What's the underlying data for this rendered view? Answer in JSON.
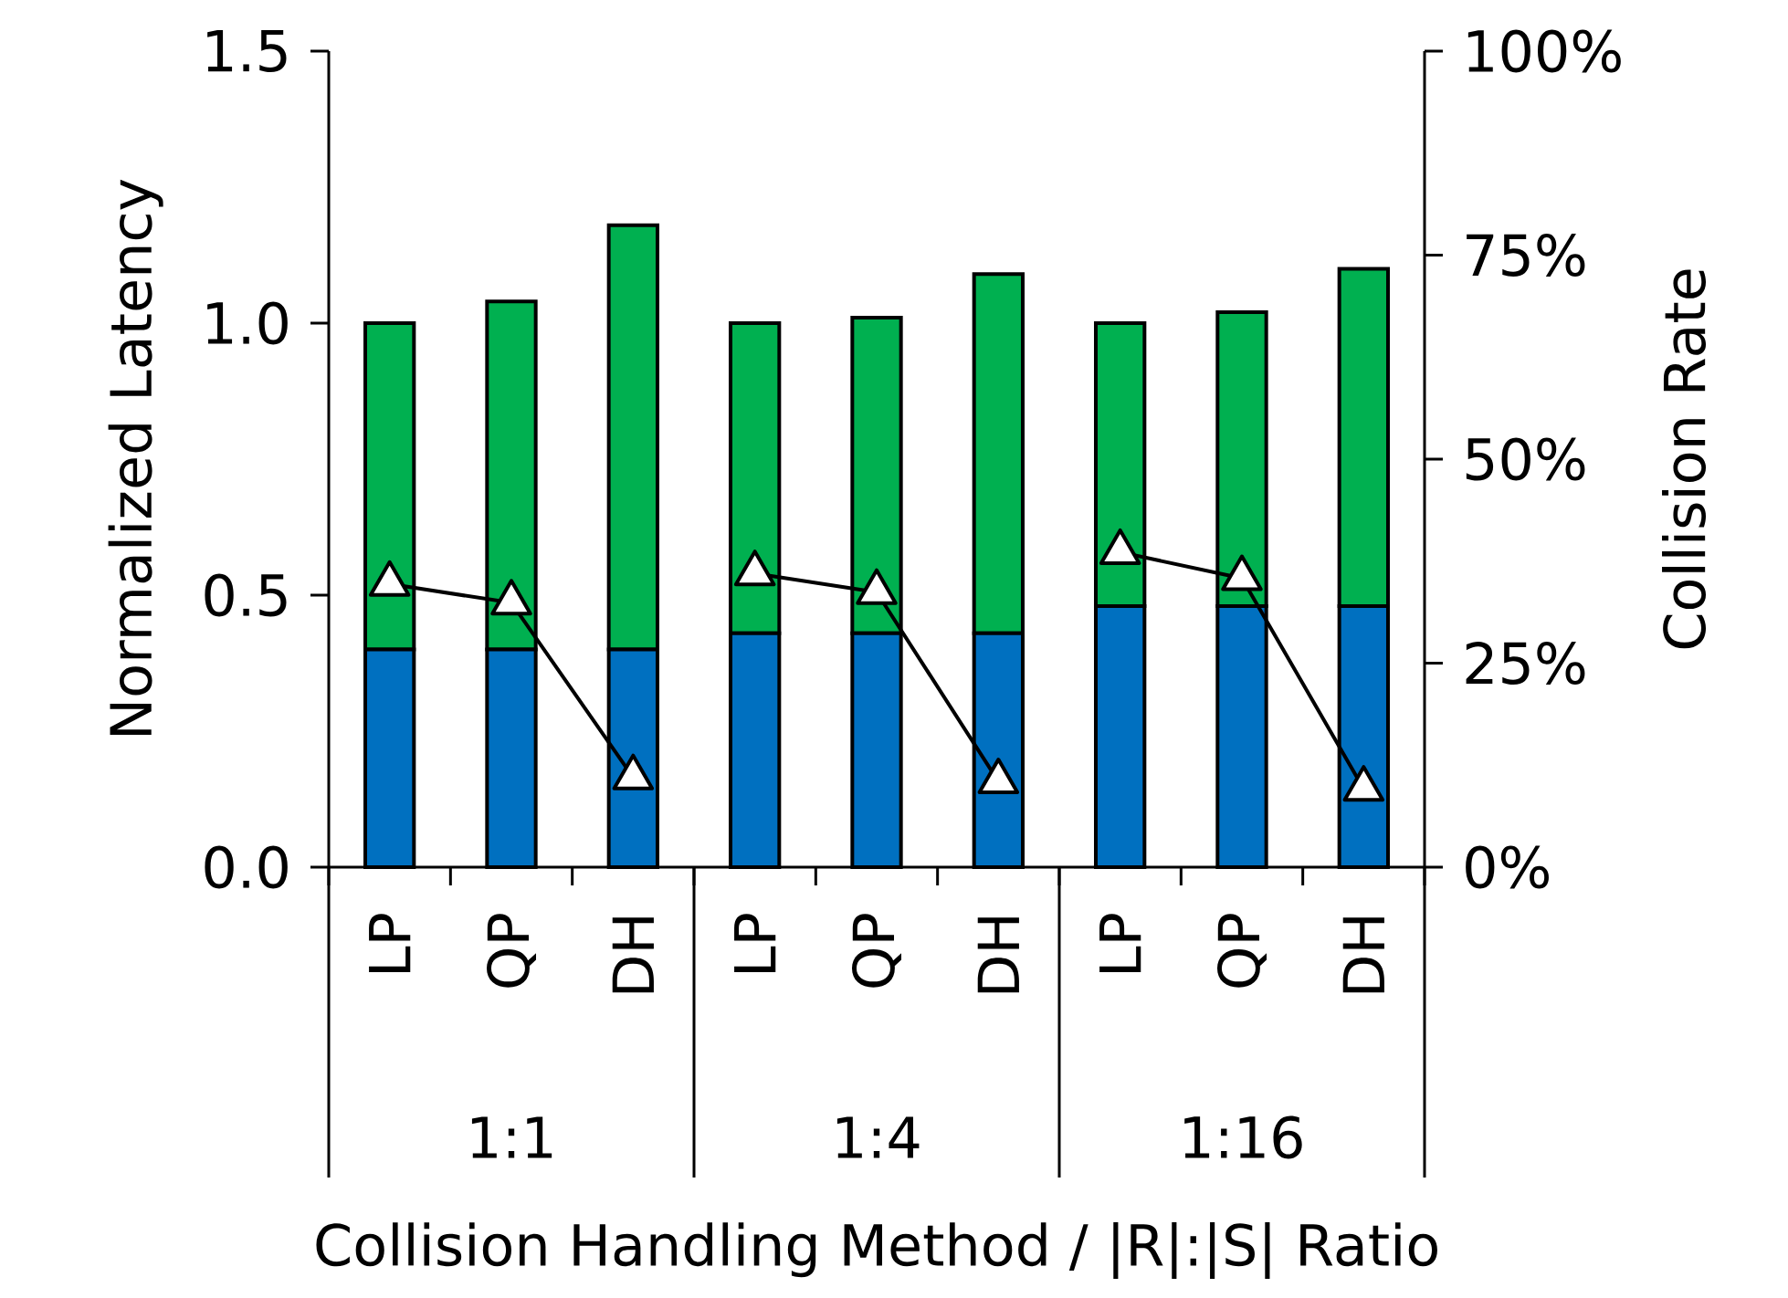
{
  "chart_data": {
    "type": "bar",
    "stacked": true,
    "categories": [
      "LP",
      "QP",
      "DH",
      "LP",
      "QP",
      "DH",
      "LP",
      "QP",
      "DH"
    ],
    "series": [
      {
        "color": "#0070c0",
        "values": [
          0.4,
          0.4,
          0.4,
          0.43,
          0.43,
          0.43,
          0.48,
          0.48,
          0.48
        ]
      },
      {
        "color": "#00b050",
        "values": [
          0.6,
          0.64,
          0.78,
          0.57,
          0.58,
          0.66,
          0.52,
          0.54,
          0.62
        ]
      },
      {
        "type": "line",
        "axis": "y2",
        "color": "#000000",
        "marker": "triangle",
        "line_style": "solid",
        "values": [
          34.7,
          32.4,
          11.0,
          null,
          null,
          null,
          null,
          null,
          null
        ]
      },
      {
        "type": "line",
        "axis": "y2",
        "color": "#000000",
        "marker": "triangle",
        "line_style": "solid",
        "values": [
          null,
          null,
          null,
          36.0,
          33.7,
          10.5,
          null,
          null,
          null
        ]
      },
      {
        "type": "line",
        "axis": "y2",
        "color": "#000000",
        "marker": "triangle",
        "line_style": "solid",
        "values": [
          null,
          null,
          null,
          null,
          null,
          null,
          38.6,
          35.4,
          9.6
        ]
      }
    ],
    "xlabel": "Collision Handling Method / |R|:|S| Ratio",
    "ylabel": "Normalized Latency",
    "y2label": "Collision Rate",
    "annotations": [
      "1:1",
      "1:4",
      "1:16"
    ],
    "ylim": [
      0,
      1.5
    ],
    "yticks": [
      {
        "value": 0,
        "label": "0.0"
      },
      {
        "value": 0.5,
        "label": "0.5"
      },
      {
        "value": 1,
        "label": "1.0"
      },
      {
        "value": 1.5,
        "label": "1.5"
      }
    ],
    "y2lim": [
      0,
      100
    ],
    "y2ticks": [
      {
        "value": 0,
        "label": "0%"
      },
      {
        "value": 25,
        "label": "25%"
      },
      {
        "value": 50,
        "label": "50%"
      },
      {
        "value": 75,
        "label": "75%"
      },
      {
        "value": 100,
        "label": "100%"
      }
    ],
    "grid": false
  }
}
